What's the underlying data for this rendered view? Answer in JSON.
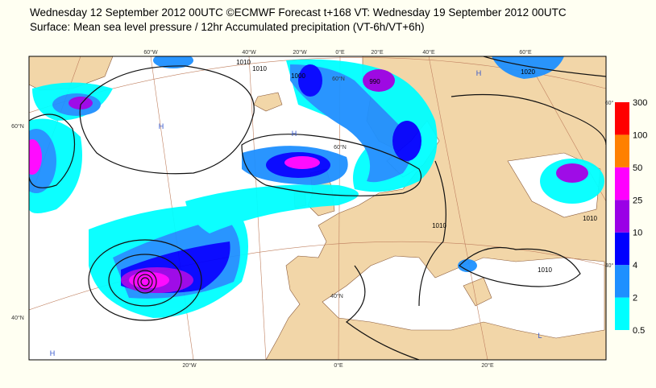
{
  "header": {
    "line1": "Wednesday 12 September 2012 00UTC ©ECMWF Forecast t+168 VT: Wednesday 19 September 2012 00UTC",
    "line2": "Surface: Mean sea level pressure / 12hr Accumulated precipitation (VT-6h/VT+6h)"
  },
  "map": {
    "lon_labels_top": [
      "60°W",
      "40°W",
      "20°W",
      "0°E",
      "20°E",
      "40°E",
      "60°E"
    ],
    "lon_labels_bottom": [
      "20°W",
      "0°E",
      "20°E"
    ],
    "lat_labels_left": [
      "60°N",
      "40°N"
    ],
    "lat_labels_right": [
      "60°",
      "40°"
    ],
    "lat_labels_inner": [
      "60°N",
      "60°N",
      "40°N"
    ],
    "isobar_labels": [
      "1010",
      "1010",
      "1000",
      "990",
      "1010",
      "1020",
      "1010",
      "1010"
    ],
    "pressure_centres": [
      "H",
      "H",
      "H",
      "H",
      "L"
    ]
  },
  "legend": {
    "levels": [
      0.5,
      2,
      4,
      10,
      25,
      50,
      100,
      300
    ],
    "colors": [
      "#00ffff",
      "#1e90ff",
      "#0000ff",
      "#9a00e6",
      "#ff00ff",
      "#ff8000",
      "#ff0000"
    ]
  }
}
